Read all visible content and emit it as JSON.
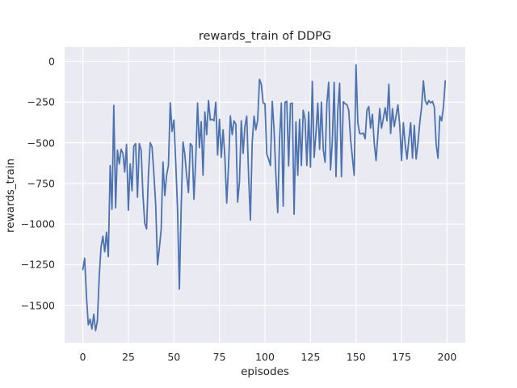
{
  "chart_data": {
    "type": "line",
    "title": "rewards_train of DDPG",
    "xlabel": "episodes",
    "ylabel": "rewards_train",
    "x_start": 0,
    "x_step": 1,
    "xticks": [
      0,
      25,
      50,
      75,
      100,
      125,
      150,
      175,
      200
    ],
    "yticks": [
      0,
      -250,
      -500,
      -750,
      -1000,
      -1250,
      -1500
    ],
    "xlim": [
      -10,
      210
    ],
    "ylim": [
      -1730,
      90
    ],
    "grid": true,
    "legend": "none",
    "colors": {
      "line": "#4c72b0",
      "plot_bg": "#eaeaf2",
      "grid": "#ffffff",
      "text": "#262626",
      "figure_bg": "#ffffff"
    },
    "series": [
      {
        "name": "rewards_train",
        "values": [
          -1280,
          -1210,
          -1445,
          -1620,
          -1585,
          -1645,
          -1555,
          -1655,
          -1595,
          -1320,
          -1140,
          -1075,
          -1170,
          -1050,
          -1200,
          -640,
          -910,
          -270,
          -900,
          -545,
          -630,
          -540,
          -565,
          -680,
          -510,
          -915,
          -630,
          -795,
          -520,
          -505,
          -835,
          -505,
          -545,
          -820,
          -995,
          -1030,
          -700,
          -500,
          -525,
          -690,
          -880,
          -1250,
          -1150,
          -1035,
          -618,
          -825,
          -700,
          -640,
          -254,
          -430,
          -360,
          -620,
          -905,
          -1400,
          -900,
          -495,
          -572,
          -700,
          -806,
          -505,
          -520,
          -848,
          -600,
          -255,
          -530,
          -370,
          -700,
          -310,
          -450,
          -240,
          -360,
          -355,
          -365,
          -250,
          -575,
          -355,
          -590,
          -420,
          -590,
          -870,
          -640,
          -334,
          -450,
          -365,
          -385,
          -865,
          -740,
          -365,
          -565,
          -400,
          -336,
          -700,
          -975,
          -500,
          -336,
          -420,
          -360,
          -110,
          -140,
          -255,
          -260,
          -570,
          -600,
          -640,
          -245,
          -420,
          -700,
          -930,
          -480,
          -255,
          -890,
          -250,
          -245,
          -642,
          -260,
          -255,
          -940,
          -372,
          -700,
          -355,
          -640,
          -300,
          -355,
          -640,
          -310,
          -650,
          -122,
          -590,
          -440,
          -255,
          -540,
          -250,
          -540,
          -620,
          -255,
          -128,
          -667,
          -490,
          -128,
          -708,
          -300,
          -133,
          -708,
          -247,
          -260,
          -265,
          -300,
          -476,
          -590,
          -700,
          -20,
          -377,
          -443,
          -445,
          -440,
          -475,
          -300,
          -277,
          -410,
          -325,
          -500,
          -609,
          -450,
          -290,
          -410,
          -350,
          -285,
          -365,
          -140,
          -443,
          -290,
          -400,
          -335,
          -267,
          -393,
          -609,
          -377,
          -509,
          -600,
          -480,
          -377,
          -595,
          -393,
          -600,
          -500,
          -377,
          -280,
          -119,
          -240,
          -265,
          -240,
          -255,
          -245,
          -280,
          -509,
          -595,
          -335,
          -365,
          -280,
          -119
        ]
      }
    ]
  }
}
